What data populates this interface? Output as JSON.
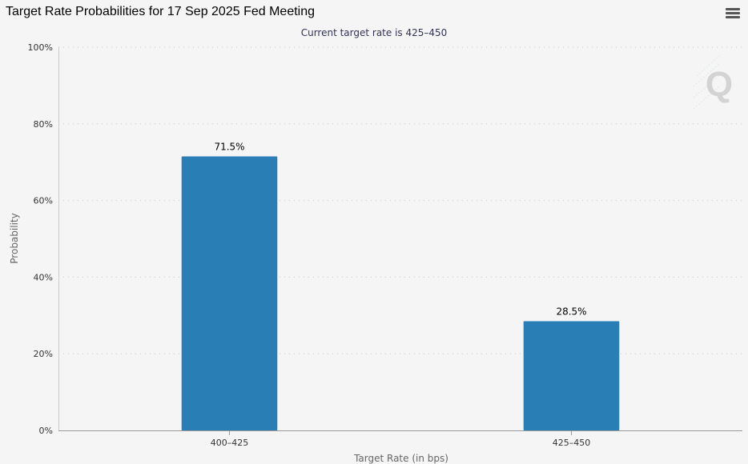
{
  "chart_data": {
    "type": "bar",
    "title": "Target Rate Probabilities for 17 Sep 2025 Fed Meeting",
    "subtitle": "Current target rate is 425–450",
    "xlabel": "Target Rate (in bps)",
    "ylabel": "Probability",
    "categories": [
      "400–425",
      "425–450"
    ],
    "values": [
      71.5,
      28.5
    ],
    "data_labels": [
      "71.5%",
      "28.5%"
    ],
    "ylim": [
      0,
      100
    ],
    "yticks": [
      0,
      20,
      40,
      60,
      80,
      100
    ],
    "ytick_labels": [
      "0%",
      "20%",
      "40%",
      "60%",
      "80%",
      "100%"
    ],
    "grid": true,
    "legend": "none",
    "bar_color": "#2a7eb6"
  },
  "icons": {
    "menu": "hamburger-menu-icon",
    "logo": "q-watermark-logo"
  }
}
